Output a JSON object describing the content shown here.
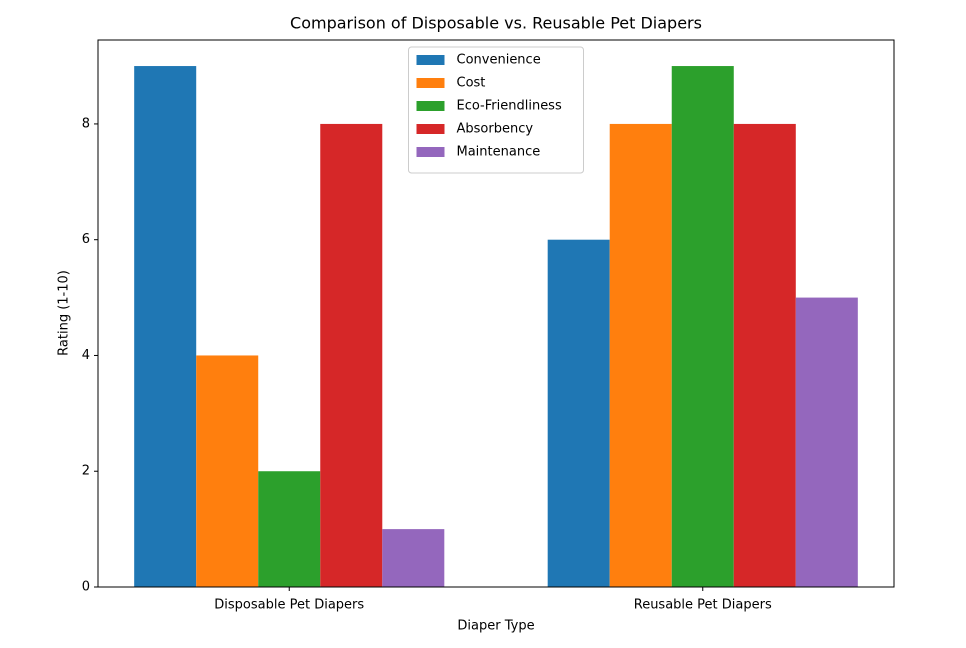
{
  "chart_data": {
    "type": "bar",
    "title": "Comparison of Disposable vs. Reusable Pet Diapers",
    "x_label": "Diaper Type",
    "y_label": "Rating (1-10)",
    "categories": [
      "Disposable Pet Diapers",
      "Reusable Pet Diapers"
    ],
    "series": [
      {
        "name": "Convenience",
        "color": "#1f77b4",
        "values": [
          9,
          6
        ]
      },
      {
        "name": "Cost",
        "color": "#ff7f0e",
        "values": [
          4,
          8
        ]
      },
      {
        "name": "Eco-Friendliness",
        "color": "#2ca02c",
        "values": [
          2,
          9
        ]
      },
      {
        "name": "Absorbency",
        "color": "#d62728",
        "values": [
          8,
          8
        ]
      },
      {
        "name": "Maintenance",
        "color": "#9467bd",
        "values": [
          1,
          5
        ]
      }
    ],
    "ylim": [
      0,
      9.45
    ],
    "yticks": [
      0,
      2,
      4,
      6,
      8
    ],
    "legend": "upper center"
  }
}
